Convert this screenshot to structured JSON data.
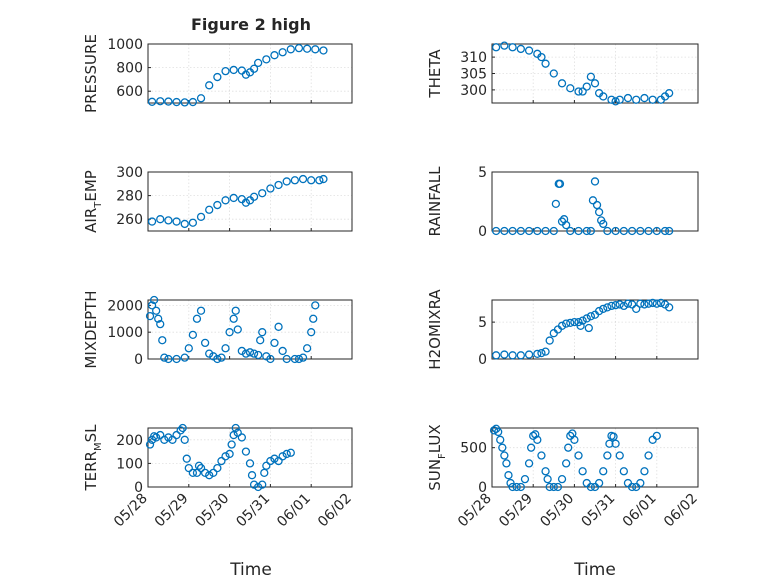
{
  "figure_title": "Figure 2 high",
  "colors": {
    "marker": "#0072BD",
    "axis": "#262626"
  },
  "x_tick_labels": [
    "05/28",
    "05/29",
    "05/30",
    "05/31",
    "06/01",
    "06/02"
  ],
  "x_label": "Time",
  "chart_data": [
    {
      "type": "scatter",
      "ylabel": "PRESSURE",
      "ylim": [
        500,
        1000
      ],
      "yticks": [
        600,
        800,
        1000
      ],
      "x_range_days": [
        0,
        5
      ],
      "grid": true,
      "points": [
        [
          0.1,
          510
        ],
        [
          0.3,
          515
        ],
        [
          0.5,
          512
        ],
        [
          0.7,
          508
        ],
        [
          0.9,
          505
        ],
        [
          1.1,
          508
        ],
        [
          1.3,
          540
        ],
        [
          1.5,
          650
        ],
        [
          1.7,
          720
        ],
        [
          1.9,
          770
        ],
        [
          2.1,
          780
        ],
        [
          2.3,
          775
        ],
        [
          2.4,
          740
        ],
        [
          2.5,
          760
        ],
        [
          2.6,
          790
        ],
        [
          2.7,
          840
        ],
        [
          2.9,
          870
        ],
        [
          3.1,
          905
        ],
        [
          3.3,
          930
        ],
        [
          3.5,
          955
        ],
        [
          3.7,
          965
        ],
        [
          3.9,
          960
        ],
        [
          4.1,
          955
        ],
        [
          4.3,
          945
        ]
      ]
    },
    {
      "type": "scatter",
      "ylabel": "THETA",
      "ylim": [
        296,
        314
      ],
      "yticks": [
        300,
        305,
        310
      ],
      "x_range_days": [
        0,
        5
      ],
      "grid": true,
      "points": [
        [
          0.1,
          313
        ],
        [
          0.3,
          313.5
        ],
        [
          0.5,
          313
        ],
        [
          0.7,
          312.5
        ],
        [
          0.9,
          312
        ],
        [
          1.1,
          311
        ],
        [
          1.2,
          310
        ],
        [
          1.3,
          308
        ],
        [
          1.5,
          305
        ],
        [
          1.7,
          302
        ],
        [
          1.9,
          300.5
        ],
        [
          2.1,
          299.5
        ],
        [
          2.2,
          299.5
        ],
        [
          2.3,
          301
        ],
        [
          2.4,
          304
        ],
        [
          2.5,
          302
        ],
        [
          2.6,
          299
        ],
        [
          2.7,
          298
        ],
        [
          2.9,
          297
        ],
        [
          3.0,
          296.5
        ],
        [
          3.1,
          297
        ],
        [
          3.3,
          297.5
        ],
        [
          3.5,
          297
        ],
        [
          3.7,
          297.5
        ],
        [
          3.9,
          297
        ],
        [
          4.1,
          297
        ],
        [
          4.2,
          298
        ],
        [
          4.3,
          299
        ]
      ]
    },
    {
      "type": "scatter",
      "ylabel": "AIR_TEMP",
      "ylim": [
        250,
        300
      ],
      "yticks": [
        260,
        280,
        300
      ],
      "x_range_days": [
        0,
        5
      ],
      "grid": true,
      "points": [
        [
          0.1,
          258
        ],
        [
          0.3,
          260
        ],
        [
          0.5,
          259
        ],
        [
          0.7,
          258
        ],
        [
          0.9,
          256
        ],
        [
          1.1,
          257
        ],
        [
          1.3,
          262
        ],
        [
          1.5,
          268
        ],
        [
          1.7,
          272
        ],
        [
          1.9,
          276
        ],
        [
          2.1,
          278
        ],
        [
          2.3,
          277
        ],
        [
          2.4,
          274
        ],
        [
          2.5,
          276
        ],
        [
          2.6,
          279
        ],
        [
          2.8,
          282
        ],
        [
          3.0,
          286
        ],
        [
          3.2,
          289
        ],
        [
          3.4,
          292
        ],
        [
          3.6,
          293
        ],
        [
          3.8,
          294
        ],
        [
          4.0,
          293
        ],
        [
          4.2,
          293
        ],
        [
          4.3,
          294
        ]
      ]
    },
    {
      "type": "scatter",
      "ylabel": "RAINFALL",
      "ylim": [
        0,
        5
      ],
      "yticks": [
        0,
        5
      ],
      "x_range_days": [
        0,
        5
      ],
      "grid": false,
      "points": [
        [
          0.1,
          0
        ],
        [
          0.3,
          0
        ],
        [
          0.5,
          0
        ],
        [
          0.7,
          0
        ],
        [
          0.9,
          0
        ],
        [
          1.1,
          0
        ],
        [
          1.3,
          0
        ],
        [
          1.5,
          0
        ],
        [
          1.55,
          2.3
        ],
        [
          1.62,
          4.0
        ],
        [
          1.65,
          4.0
        ],
        [
          1.7,
          0.8
        ],
        [
          1.75,
          1.0
        ],
        [
          1.8,
          0.5
        ],
        [
          1.9,
          0
        ],
        [
          2.1,
          0
        ],
        [
          2.3,
          0
        ],
        [
          2.4,
          0
        ],
        [
          2.45,
          2.6
        ],
        [
          2.5,
          4.2
        ],
        [
          2.55,
          2.2
        ],
        [
          2.6,
          1.6
        ],
        [
          2.65,
          0.9
        ],
        [
          2.7,
          0.6
        ],
        [
          2.8,
          0
        ],
        [
          3.0,
          0
        ],
        [
          3.2,
          0
        ],
        [
          3.4,
          0
        ],
        [
          3.6,
          0
        ],
        [
          3.8,
          0
        ],
        [
          4.0,
          0
        ],
        [
          4.2,
          0
        ],
        [
          4.3,
          0
        ]
      ]
    },
    {
      "type": "scatter",
      "ylabel": "MIXDEPTH",
      "ylim": [
        0,
        2200
      ],
      "yticks": [
        0,
        1000,
        2000
      ],
      "x_range_days": [
        0,
        5
      ],
      "grid": true,
      "points": [
        [
          0.05,
          1600
        ],
        [
          0.1,
          2000
        ],
        [
          0.15,
          2200
        ],
        [
          0.2,
          1800
        ],
        [
          0.25,
          1500
        ],
        [
          0.3,
          1300
        ],
        [
          0.35,
          700
        ],
        [
          0.4,
          50
        ],
        [
          0.5,
          0
        ],
        [
          0.7,
          0
        ],
        [
          0.9,
          50
        ],
        [
          1.0,
          400
        ],
        [
          1.1,
          900
        ],
        [
          1.2,
          1500
        ],
        [
          1.3,
          1800
        ],
        [
          1.4,
          600
        ],
        [
          1.5,
          200
        ],
        [
          1.6,
          100
        ],
        [
          1.7,
          0
        ],
        [
          1.8,
          50
        ],
        [
          1.9,
          400
        ],
        [
          2.0,
          1000
        ],
        [
          2.1,
          1500
        ],
        [
          2.15,
          1800
        ],
        [
          2.2,
          1100
        ],
        [
          2.3,
          300
        ],
        [
          2.4,
          200
        ],
        [
          2.5,
          250
        ],
        [
          2.6,
          200
        ],
        [
          2.7,
          150
        ],
        [
          2.75,
          700
        ],
        [
          2.8,
          1000
        ],
        [
          2.9,
          100
        ],
        [
          3.0,
          0
        ],
        [
          3.1,
          600
        ],
        [
          3.2,
          1200
        ],
        [
          3.3,
          300
        ],
        [
          3.4,
          0
        ],
        [
          3.6,
          0
        ],
        [
          3.7,
          0
        ],
        [
          3.8,
          50
        ],
        [
          3.9,
          400
        ],
        [
          4.0,
          1000
        ],
        [
          4.05,
          1500
        ],
        [
          4.1,
          2000
        ]
      ]
    },
    {
      "type": "scatter",
      "ylabel": "H2OMIXRA",
      "ylim": [
        0,
        8
      ],
      "yticks": [
        0,
        5
      ],
      "x_range_days": [
        0,
        5
      ],
      "grid": true,
      "points": [
        [
          0.1,
          0.5
        ],
        [
          0.3,
          0.6
        ],
        [
          0.5,
          0.5
        ],
        [
          0.7,
          0.5
        ],
        [
          0.9,
          0.6
        ],
        [
          1.1,
          0.7
        ],
        [
          1.2,
          0.8
        ],
        [
          1.3,
          1.0
        ],
        [
          1.4,
          2.5
        ],
        [
          1.5,
          3.5
        ],
        [
          1.6,
          4.0
        ],
        [
          1.7,
          4.5
        ],
        [
          1.8,
          4.8
        ],
        [
          1.9,
          4.9
        ],
        [
          2.0,
          5.0
        ],
        [
          2.1,
          5.0
        ],
        [
          2.15,
          4.5
        ],
        [
          2.2,
          5.2
        ],
        [
          2.3,
          5.5
        ],
        [
          2.35,
          4.2
        ],
        [
          2.4,
          5.8
        ],
        [
          2.5,
          6.0
        ],
        [
          2.6,
          6.5
        ],
        [
          2.7,
          6.8
        ],
        [
          2.8,
          7.0
        ],
        [
          2.9,
          7.2
        ],
        [
          3.0,
          7.3
        ],
        [
          3.1,
          7.4
        ],
        [
          3.2,
          7.2
        ],
        [
          3.3,
          7.5
        ],
        [
          3.4,
          7.4
        ],
        [
          3.5,
          6.8
        ],
        [
          3.6,
          7.5
        ],
        [
          3.7,
          7.4
        ],
        [
          3.8,
          7.5
        ],
        [
          3.9,
          7.6
        ],
        [
          4.0,
          7.5
        ],
        [
          4.1,
          7.6
        ],
        [
          4.2,
          7.4
        ],
        [
          4.3,
          7.0
        ]
      ]
    },
    {
      "type": "scatter",
      "ylabel": "TERR_MSL",
      "ylim": [
        0,
        250
      ],
      "yticks": [
        0,
        100,
        200
      ],
      "x_range_days": [
        0,
        5
      ],
      "grid": true,
      "points": [
        [
          0.05,
          180
        ],
        [
          0.1,
          200
        ],
        [
          0.15,
          215
        ],
        [
          0.2,
          210
        ],
        [
          0.3,
          220
        ],
        [
          0.4,
          200
        ],
        [
          0.5,
          210
        ],
        [
          0.6,
          200
        ],
        [
          0.7,
          220
        ],
        [
          0.8,
          240
        ],
        [
          0.85,
          250
        ],
        [
          0.9,
          200
        ],
        [
          0.95,
          120
        ],
        [
          1.0,
          80
        ],
        [
          1.1,
          60
        ],
        [
          1.2,
          60
        ],
        [
          1.25,
          90
        ],
        [
          1.3,
          80
        ],
        [
          1.4,
          60
        ],
        [
          1.5,
          50
        ],
        [
          1.6,
          60
        ],
        [
          1.7,
          80
        ],
        [
          1.8,
          110
        ],
        [
          1.9,
          130
        ],
        [
          2.0,
          140
        ],
        [
          2.05,
          180
        ],
        [
          2.1,
          220
        ],
        [
          2.15,
          250
        ],
        [
          2.2,
          230
        ],
        [
          2.3,
          210
        ],
        [
          2.4,
          150
        ],
        [
          2.5,
          100
        ],
        [
          2.55,
          50
        ],
        [
          2.6,
          10
        ],
        [
          2.7,
          0
        ],
        [
          2.8,
          10
        ],
        [
          2.85,
          60
        ],
        [
          2.9,
          90
        ],
        [
          3.0,
          110
        ],
        [
          3.1,
          120
        ],
        [
          3.2,
          110
        ],
        [
          3.3,
          130
        ],
        [
          3.4,
          140
        ],
        [
          3.5,
          145
        ]
      ]
    },
    {
      "type": "scatter",
      "ylabel": "SUN_FLUX",
      "ylim": [
        0,
        750
      ],
      "yticks": [
        0,
        500
      ],
      "x_range_days": [
        0,
        5
      ],
      "grid": true,
      "points": [
        [
          0.05,
          720
        ],
        [
          0.1,
          740
        ],
        [
          0.15,
          700
        ],
        [
          0.2,
          600
        ],
        [
          0.25,
          500
        ],
        [
          0.3,
          400
        ],
        [
          0.35,
          300
        ],
        [
          0.4,
          150
        ],
        [
          0.45,
          50
        ],
        [
          0.5,
          0
        ],
        [
          0.6,
          0
        ],
        [
          0.7,
          0
        ],
        [
          0.8,
          100
        ],
        [
          0.9,
          300
        ],
        [
          0.95,
          500
        ],
        [
          1.0,
          650
        ],
        [
          1.05,
          670
        ],
        [
          1.1,
          600
        ],
        [
          1.2,
          400
        ],
        [
          1.3,
          200
        ],
        [
          1.35,
          100
        ],
        [
          1.4,
          0
        ],
        [
          1.5,
          0
        ],
        [
          1.6,
          0
        ],
        [
          1.7,
          100
        ],
        [
          1.8,
          300
        ],
        [
          1.85,
          500
        ],
        [
          1.9,
          650
        ],
        [
          1.95,
          680
        ],
        [
          2.0,
          600
        ],
        [
          2.1,
          400
        ],
        [
          2.2,
          200
        ],
        [
          2.3,
          50
        ],
        [
          2.4,
          0
        ],
        [
          2.5,
          0
        ],
        [
          2.6,
          50
        ],
        [
          2.7,
          200
        ],
        [
          2.8,
          400
        ],
        [
          2.85,
          550
        ],
        [
          2.9,
          650
        ],
        [
          2.95,
          640
        ],
        [
          3.0,
          550
        ],
        [
          3.1,
          400
        ],
        [
          3.2,
          200
        ],
        [
          3.3,
          50
        ],
        [
          3.4,
          0
        ],
        [
          3.5,
          0
        ],
        [
          3.6,
          50
        ],
        [
          3.7,
          200
        ],
        [
          3.8,
          400
        ],
        [
          3.9,
          600
        ],
        [
          4.0,
          650
        ]
      ]
    }
  ]
}
